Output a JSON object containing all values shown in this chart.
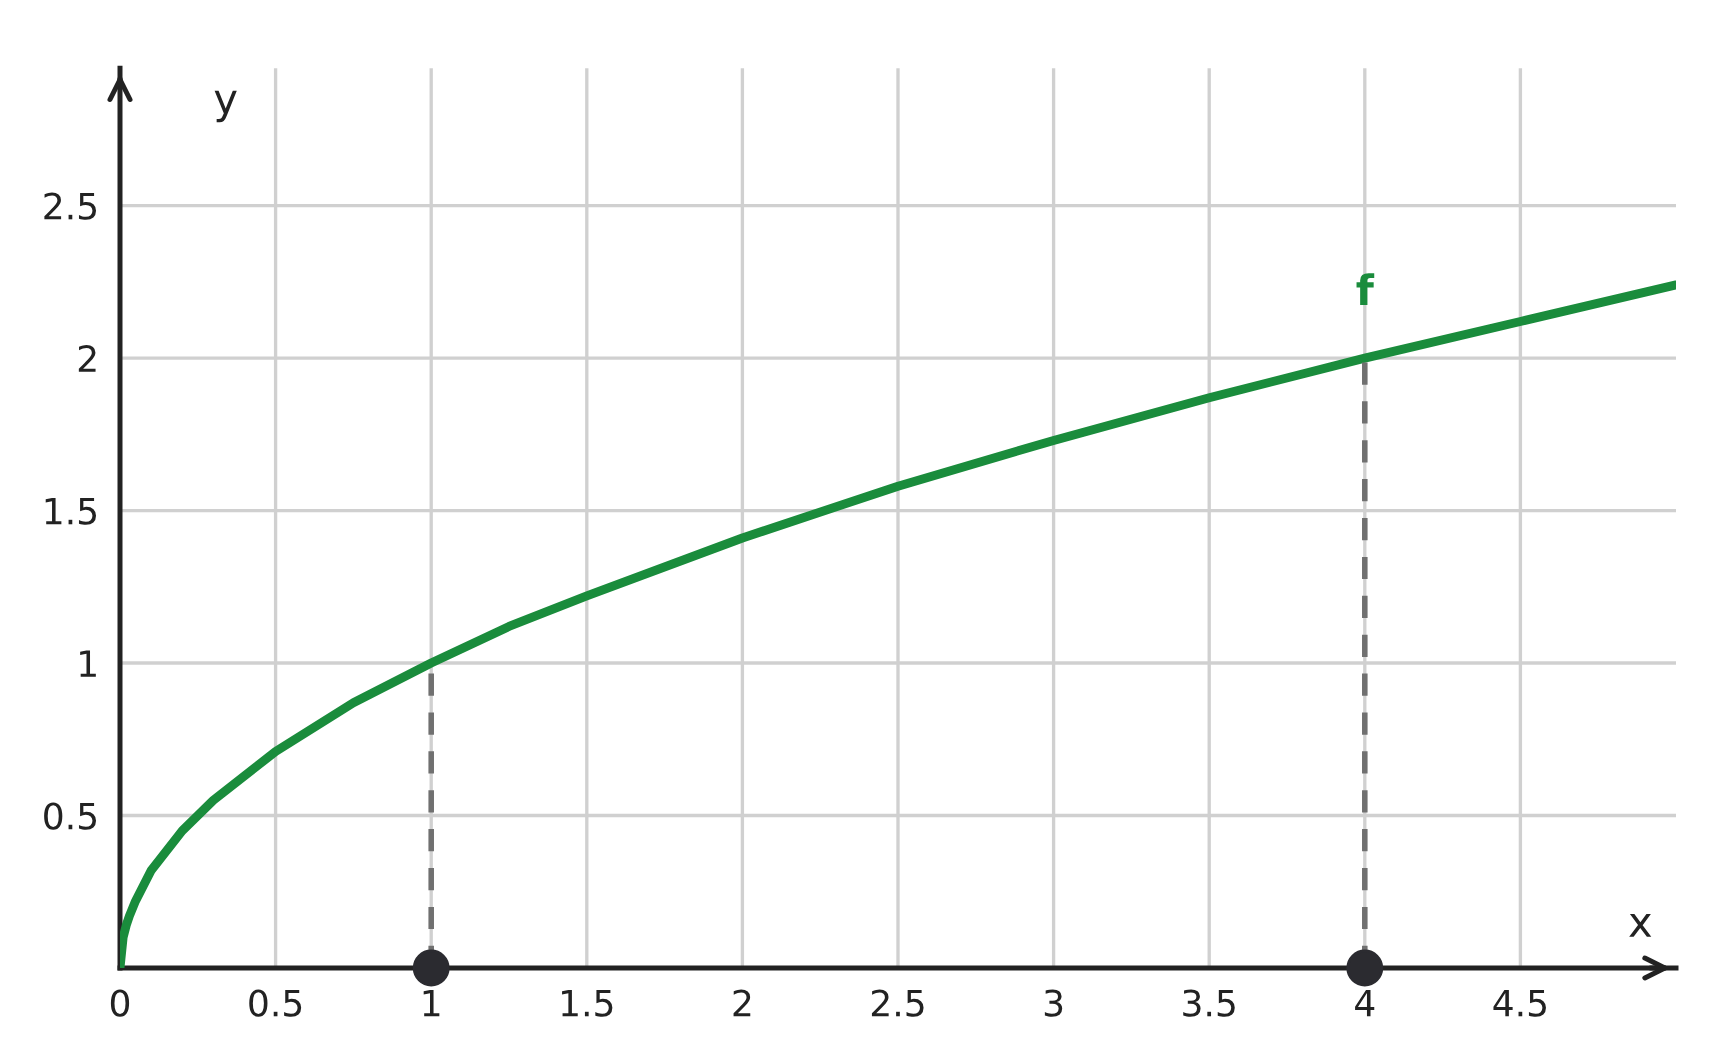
{
  "chart_data": {
    "type": "line",
    "xlabel": "x",
    "ylabel": "y",
    "xlim": [
      0,
      5
    ],
    "ylim": [
      0,
      2.95
    ],
    "xticks": [
      0,
      0.5,
      1,
      1.5,
      2,
      2.5,
      3,
      3.5,
      4,
      4.5
    ],
    "yticks": [
      0.5,
      1,
      1.5,
      2,
      2.5
    ],
    "grid": true,
    "legend": false,
    "series": [
      {
        "name": "f",
        "color": "#1a8c3c",
        "line_style": "solid",
        "x": [
          0,
          0.01,
          0.02,
          0.03,
          0.05,
          0.1,
          0.2,
          0.3,
          0.5,
          0.75,
          1,
          1.25,
          1.5,
          2,
          2.5,
          3,
          3.5,
          4,
          4.5,
          5
        ],
        "values": [
          0,
          0.1,
          0.14,
          0.17,
          0.22,
          0.32,
          0.45,
          0.55,
          0.71,
          0.87,
          1,
          1.12,
          1.22,
          1.41,
          1.58,
          1.73,
          1.87,
          2,
          2.12,
          2.24
        ]
      },
      {
        "type": "line",
        "color": "#707070",
        "line_style": "dashed",
        "x": [
          1,
          1
        ],
        "values": [
          0,
          1
        ]
      },
      {
        "type": "line",
        "color": "#707070",
        "line_style": "dashed",
        "x": [
          4,
          4
        ],
        "values": [
          0,
          2
        ]
      },
      {
        "type": "scatter",
        "color": "#2b2b30",
        "marker": "circle",
        "x": [
          1,
          4
        ],
        "values": [
          0,
          0
        ]
      }
    ]
  }
}
